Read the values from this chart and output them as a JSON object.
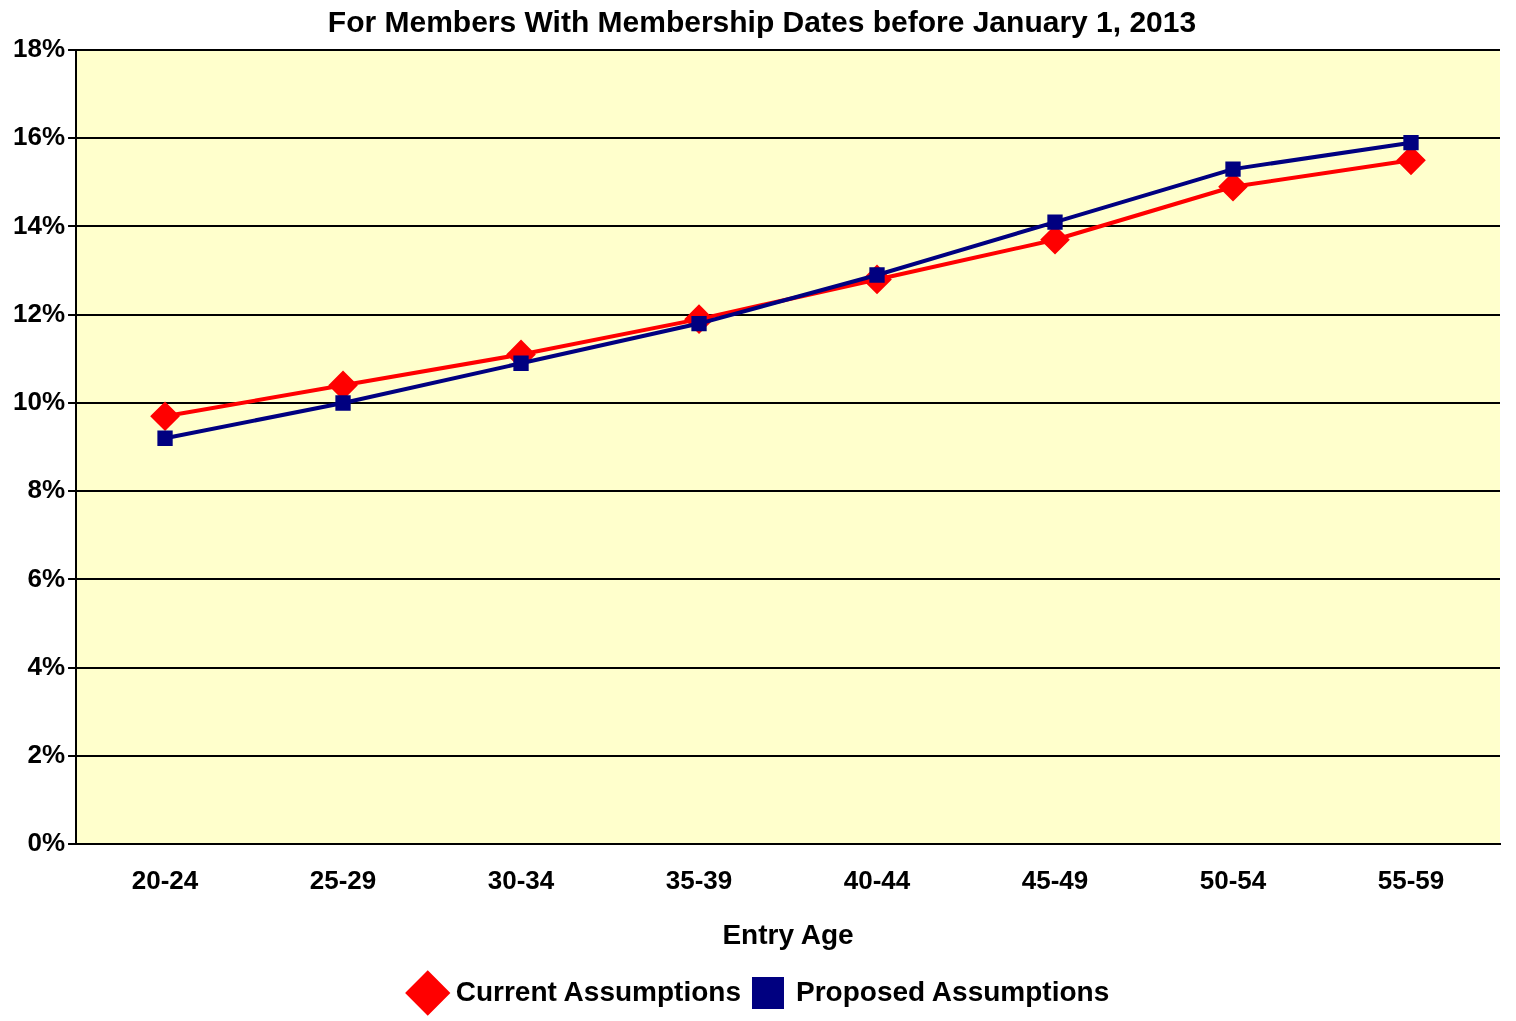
{
  "chart_data": {
    "type": "line",
    "title": "For Members With Membership Dates before January 1, 2013",
    "xlabel": "Entry Age",
    "categories": [
      "20-24",
      "25-29",
      "30-34",
      "35-39",
      "40-44",
      "45-49",
      "50-54",
      "55-59"
    ],
    "series": [
      {
        "name": "Current Assumptions",
        "color": "#ff0000",
        "marker": "diamond",
        "values": [
          9.7,
          10.4,
          11.1,
          11.9,
          12.8,
          13.7,
          14.9,
          15.5
        ]
      },
      {
        "name": "Proposed Assumptions",
        "color": "#000080",
        "marker": "square",
        "values": [
          9.2,
          10.0,
          10.9,
          11.8,
          12.9,
          14.1,
          15.3,
          15.9
        ]
      }
    ],
    "ylim": [
      0,
      18
    ],
    "yticks": [
      {
        "value": 0,
        "label": "0%"
      },
      {
        "value": 2,
        "label": "2%"
      },
      {
        "value": 4,
        "label": "4%"
      },
      {
        "value": 6,
        "label": "6%"
      },
      {
        "value": 8,
        "label": "8%"
      },
      {
        "value": 10,
        "label": "10%"
      },
      {
        "value": 12,
        "label": "12%"
      },
      {
        "value": 14,
        "label": "14%"
      },
      {
        "value": 16,
        "label": "16%"
      },
      {
        "value": 18,
        "label": "18%"
      }
    ],
    "grid": "y",
    "legend": "bottom",
    "line_style": "solid"
  }
}
